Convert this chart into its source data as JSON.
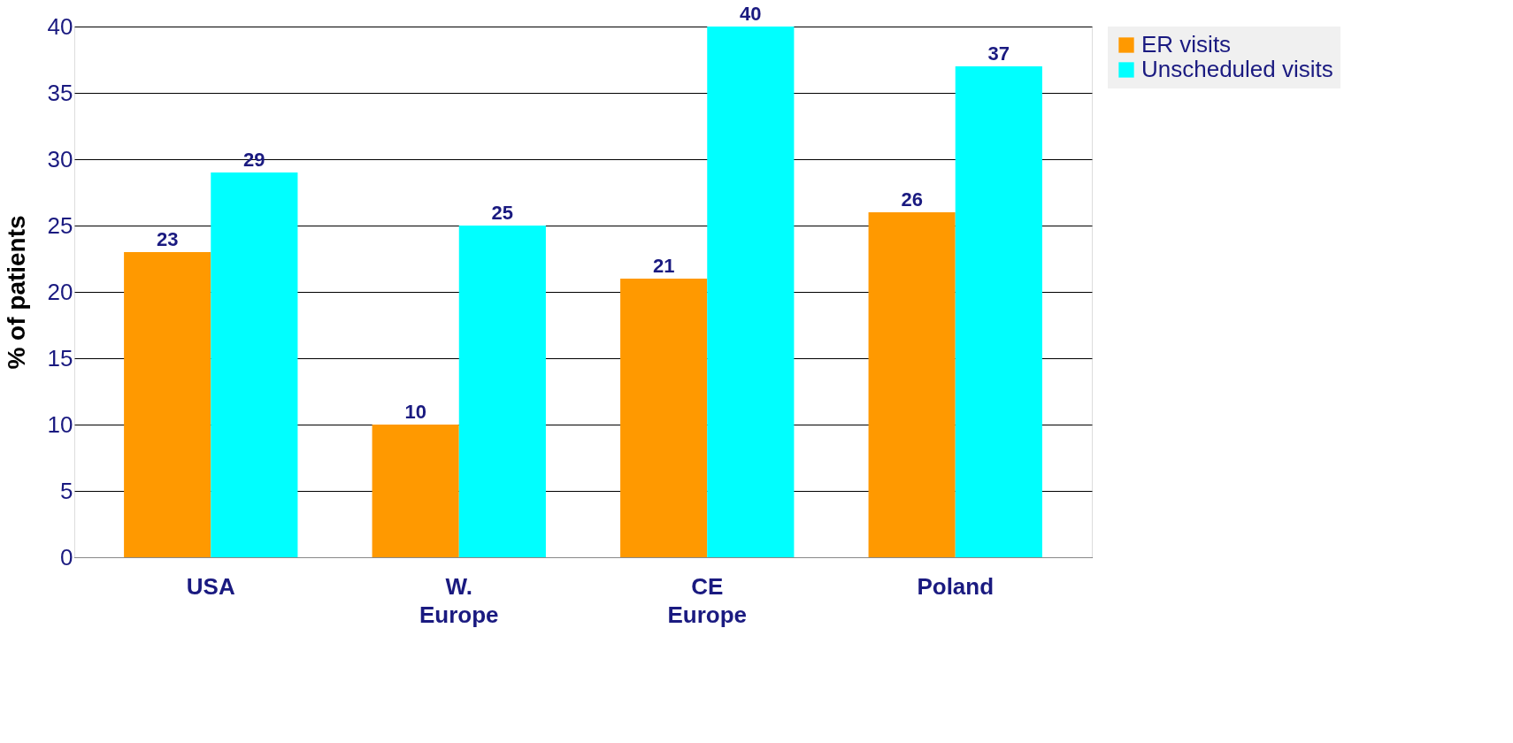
{
  "chart_data": {
    "type": "bar",
    "ylabel": "% of patients",
    "categories": [
      "USA",
      "W. Europe",
      "CE Europe",
      "Poland"
    ],
    "series": [
      {
        "name": "ER visits",
        "color": "#ff9900",
        "values": [
          23,
          10,
          21,
          26
        ]
      },
      {
        "name": "Unscheduled visits",
        "color": "#00ffff",
        "values": [
          29,
          25,
          40,
          37
        ]
      }
    ],
    "ylim": [
      0,
      40
    ],
    "yticks": [
      0,
      5,
      10,
      15,
      20,
      25,
      30,
      35,
      40
    ],
    "grid": "y",
    "legend": "right",
    "data_labels": true
  }
}
